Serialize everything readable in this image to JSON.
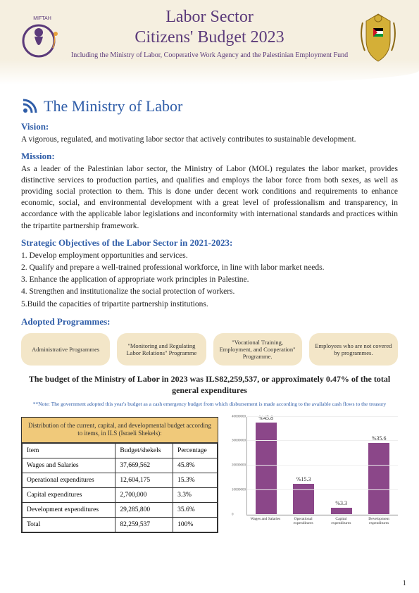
{
  "header": {
    "title_line1": "Labor Sector",
    "title_line2": "Citizens' Budget 2023",
    "subtitle": "Including the Ministry of Labor, Cooperative Work Agency and the Palestinian Employment Fund",
    "left_logo_text": "MIFTAH",
    "title_color": "#5b3a7a",
    "band_bg": "#f5efe0"
  },
  "ministry": {
    "section_title": "The Ministry of Labor",
    "vision_label": "Vision:",
    "vision_text": "A vigorous, regulated, and motivating labor sector that actively contributes to sustainable development.",
    "mission_label": "Mission:",
    "mission_text": "As a leader of the Palestinian labor sector, the Ministry of Labor (MOL) regulates the labor market, provides distinctive services to production parties, and qualifies and employs the labor force from both sexes, as well as providing social protection to them. This is done under decent work conditions and requirements to enhance economic, social, and environmental development with a great level of professionalism and transparency, in accordance with the applicable labor legislations and inconformity with international standards and practices within the tripartite partnership framework.",
    "objectives_label": "Strategic Objectives of the Labor Sector in 2021-2023:",
    "objectives": [
      "1. Develop employment opportunities and services.",
      "2. Qualify and prepare a well-trained professional workforce, in line with labor market needs.",
      "3. Enhance the application of appropriate work principles in Palestine.",
      "4. Strengthen and institutionalize the social protection of workers.",
      "5.Build the capacities of tripartite partnership institutions."
    ],
    "programmes_label": "Adopted Programmes:",
    "programmes": [
      "Administrative Programmes",
      "\"Monitoring and Regulating Labor Relations\" Programme",
      "\"Vocational Training, Employment, and Cooperation\" Programme.",
      "Employees who are not covered by programmes."
    ],
    "heading_color": "#2f5da8"
  },
  "budget": {
    "statement": "The budget of the Ministry of Labor in 2023 was ILS82,259,537, or approximately 0.47% of the total general expenditures",
    "note": "**Note: The government adopted this year's budget as a cash emergency budget from which disbursement is made according to the available cash flows to the treasury",
    "table": {
      "caption": "Distribution of the current, capital, and developmental budget according to items, in ILS (Israeli Shekels):",
      "caption_bg": "#f0c97a",
      "columns": [
        "Item",
        "Budget/shekels",
        "Percentage"
      ],
      "rows": [
        [
          "Wages and Salaries",
          "37,669,562",
          "45.8%"
        ],
        [
          "Operational expenditures",
          "12,604,175",
          "15.3%"
        ],
        [
          "Capital expenditures",
          "2,700,000",
          "3.3%"
        ],
        [
          "Development expenditures",
          "29,285,800",
          "35.6%"
        ],
        [
          " Total",
          "82,259,537",
          "100%"
        ]
      ]
    },
    "chart": {
      "type": "bar",
      "categories": [
        "Wages and Salaries",
        "Operational expenditures",
        "Capital expenditures",
        "Development expenditures"
      ],
      "values": [
        37669562,
        12604175,
        2700000,
        29285800
      ],
      "bar_labels": [
        "%45.8",
        "%15.3",
        "%3.3",
        "%35.6"
      ],
      "bar_color": "#8b4789",
      "ylim": [
        0,
        40000000
      ],
      "ytick_step": 10000000,
      "ytick_labels": [
        "0",
        "10000000",
        "20000000",
        "30000000",
        "40000000"
      ],
      "grid_color": "#eeeeee",
      "label_fontsize": 6
    }
  },
  "page_number": "1"
}
